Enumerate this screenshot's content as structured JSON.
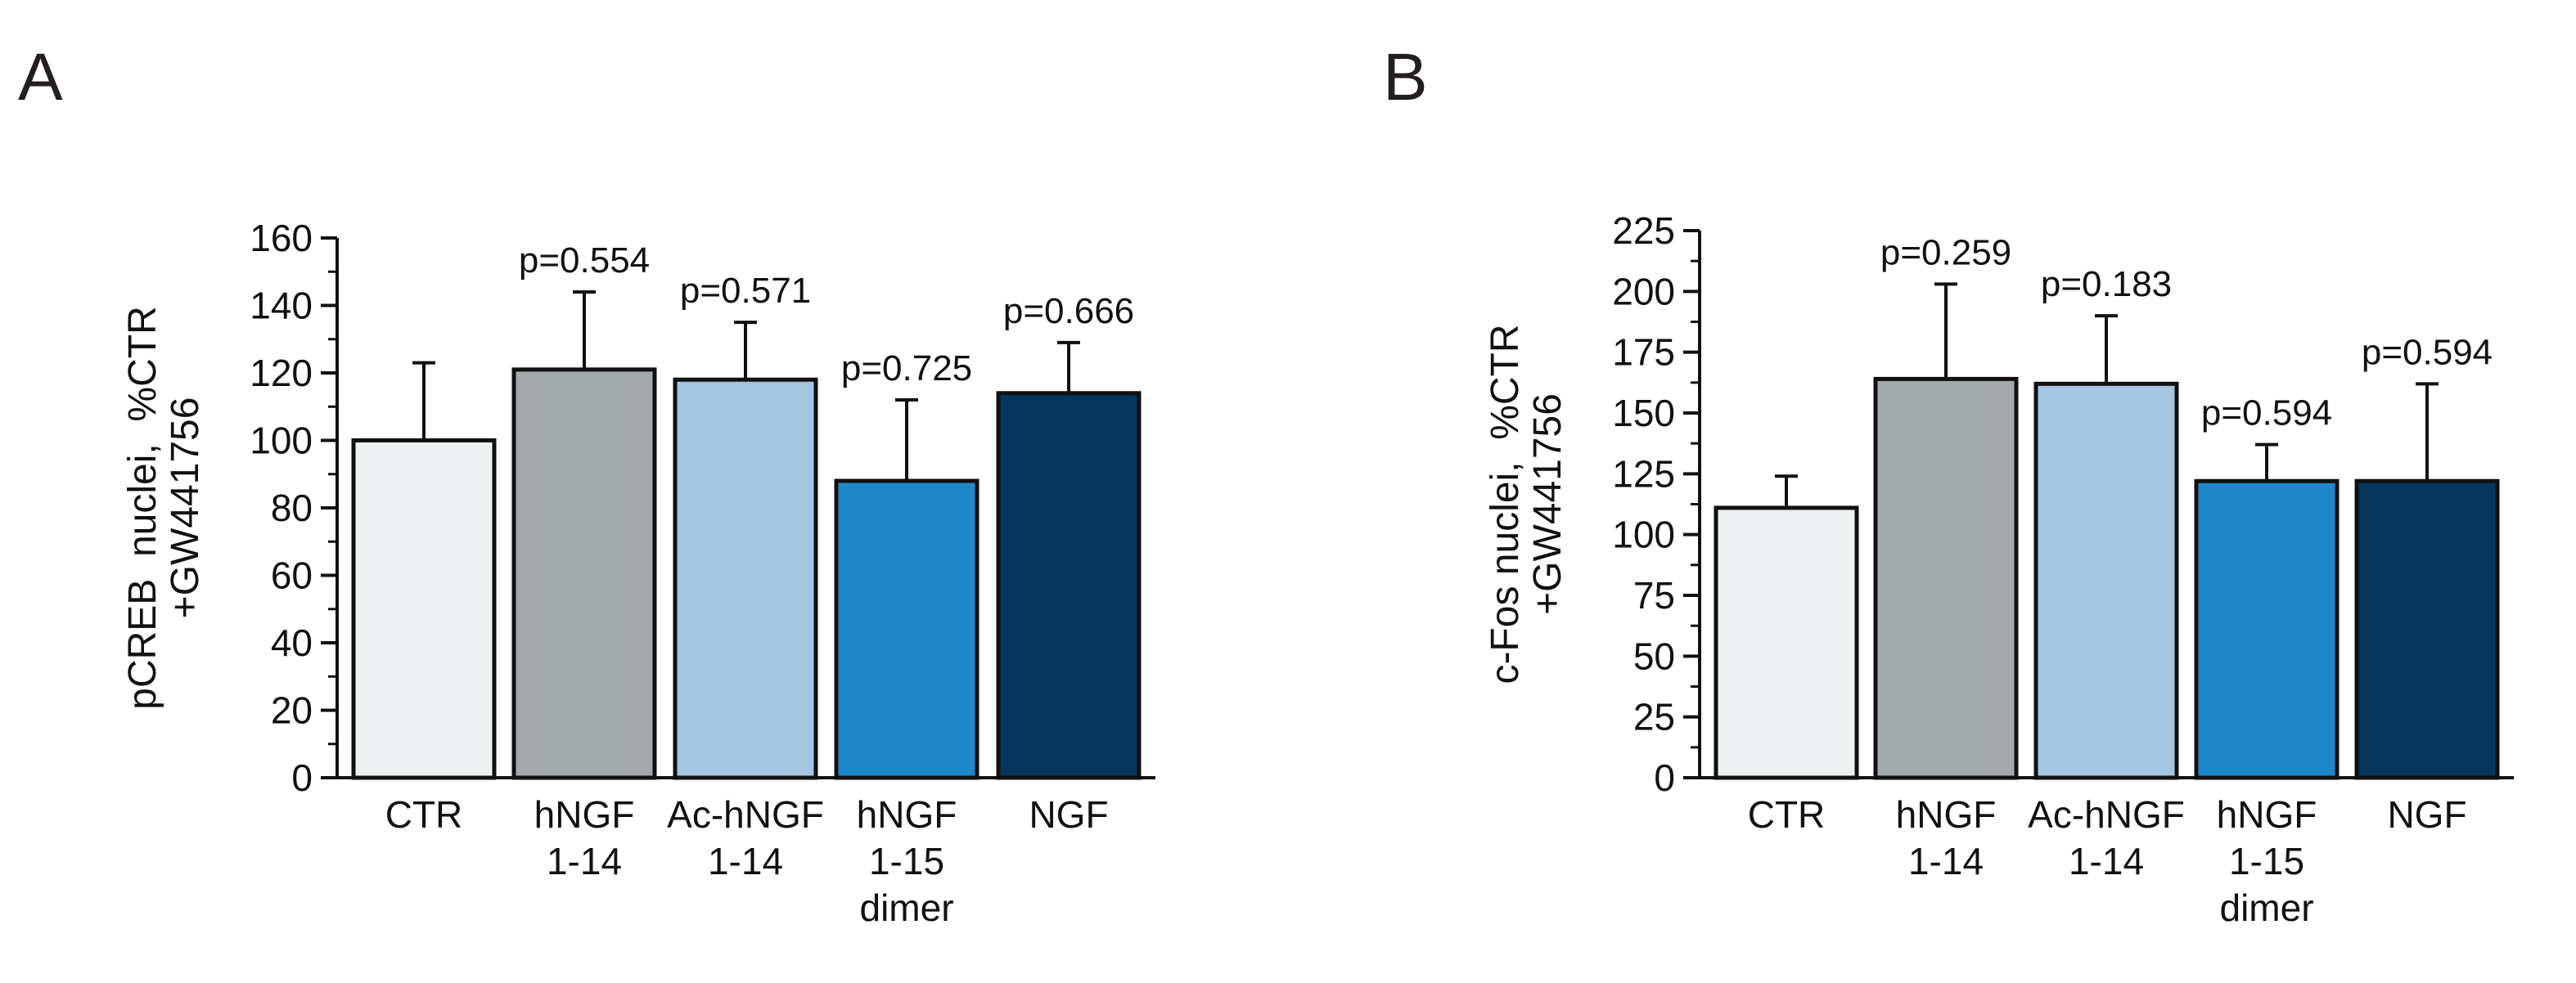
{
  "chart_data": [
    {
      "panel": "A",
      "type": "bar",
      "ylabel_lines": [
        "pCREB  nuclei,  %CTR",
        "+GW441756"
      ],
      "ylim": [
        0,
        160
      ],
      "ytick_step": 20,
      "ytick_labels": [
        "0",
        "20",
        "40",
        "60",
        "80",
        "100",
        "120",
        "140",
        "160"
      ],
      "categories": [
        [
          "CTR"
        ],
        [
          "hNGF",
          "1-14"
        ],
        [
          "Ac-hNGF",
          "1-14"
        ],
        [
          "hNGF",
          "1-15",
          "dimer"
        ],
        [
          "NGF"
        ]
      ],
      "values": [
        100,
        121,
        118,
        88,
        114
      ],
      "errors": [
        23,
        23,
        17,
        24,
        15
      ],
      "p_values": [
        "",
        "p=0.554",
        "p=0.571",
        "p=0.725",
        "p=0.666"
      ],
      "colors": [
        "#eef1f1",
        "#a4a9ab",
        "#a5c5e0",
        "#1e88cb",
        "#04365e"
      ]
    },
    {
      "panel": "B",
      "type": "bar",
      "ylabel_lines": [
        "c-Fos nuclei,  %CTR",
        "+GW441756"
      ],
      "ylim": [
        0,
        225
      ],
      "ytick_step": 25,
      "ytick_labels": [
        "0",
        "25",
        "50",
        "75",
        "100",
        "125",
        "150",
        "175",
        "200",
        "225"
      ],
      "categories": [
        [
          "CTR"
        ],
        [
          "hNGF",
          "1-14"
        ],
        [
          "Ac-hNGF",
          "1-14"
        ],
        [
          "hNGF",
          "1-15",
          "dimer"
        ],
        [
          "NGF"
        ]
      ],
      "values": [
        111,
        164,
        162,
        122,
        122
      ],
      "errors": [
        13,
        39,
        28,
        15,
        40
      ],
      "p_values": [
        "",
        "p=0.259",
        "p=0.183",
        "p=0.594",
        "p=0.594"
      ],
      "colors": [
        "#eef1f1",
        "#a4a9ab",
        "#a5c5e0",
        "#1e88cb",
        "#04365e"
      ]
    }
  ]
}
